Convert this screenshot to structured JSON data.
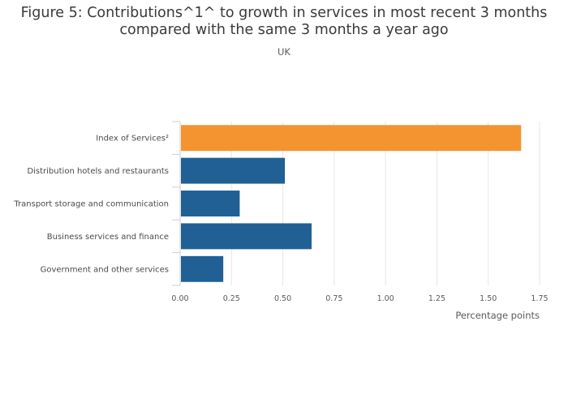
{
  "title": "Figure 5: Contributions^1^ to growth in services in most recent 3 months compared with the same 3 months a year ago",
  "subtitle": "UK",
  "chart_data": {
    "type": "bar",
    "orientation": "horizontal",
    "title": "Figure 5: Contributions^1^ to growth in services in most recent 3 months compared with the same 3 months a year ago",
    "subtitle": "UK",
    "categories": [
      "Index of Services²",
      "Distribution hotels and restaurants",
      "Transport storage and communication",
      "Business services and finance",
      "Government and other services"
    ],
    "values": [
      1.66,
      0.51,
      0.29,
      0.64,
      0.21
    ],
    "bar_colors": [
      "#f39431",
      "#206095",
      "#206095",
      "#206095",
      "#206095"
    ],
    "xlabel": "Percentage points",
    "ylabel": "",
    "xlim": [
      0,
      1.75
    ],
    "xticks": [
      "0.00",
      "0.25",
      "0.50",
      "0.75",
      "1.00",
      "1.25",
      "1.50",
      "1.75"
    ],
    "grid": true
  }
}
